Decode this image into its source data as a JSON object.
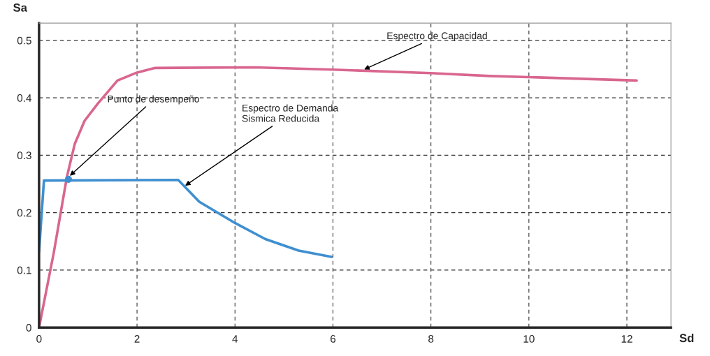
{
  "chart_data": {
    "type": "line",
    "xlabel": "Sd",
    "ylabel": "Sa",
    "xlim": [
      0,
      12.9
    ],
    "ylim": [
      0,
      0.53
    ],
    "xticks": [
      0,
      2,
      4,
      6,
      8,
      10,
      12
    ],
    "yticks": [
      0,
      0.1,
      0.2,
      0.3,
      0.4,
      0.5
    ],
    "grid": true,
    "line_style": "solid",
    "marker": "none",
    "series": [
      {
        "color": "#d9668f",
        "x": [
          0,
          0.3,
          0.57,
          0.73,
          0.93,
          1.2,
          1.6,
          2.0,
          2.37,
          4.4,
          6,
          8,
          9.2,
          10,
          12.2
        ],
        "values": [
          0,
          0.13,
          0.263,
          0.32,
          0.36,
          0.39,
          0.43,
          0.444,
          0.452,
          0.453,
          0.449,
          0.443,
          0.438,
          0.436,
          0.43
        ]
      },
      {
        "color": "#3f8fd0",
        "x": [
          0,
          0.1,
          2.84,
          3.27,
          4.0,
          4.62,
          5.3,
          5.97
        ],
        "values": [
          0.132,
          0.256,
          0.257,
          0.219,
          0.182,
          0.154,
          0.134,
          0.123
        ]
      },
      {
        "type": "scatter",
        "marker": "circle",
        "color": "#3f8fd0",
        "x": [
          0.6
        ],
        "values": [
          0.258
        ]
      }
    ],
    "annotations": [
      {
        "text": "Espectro de Capacidad",
        "x": 6.6,
        "y": 0.448
      },
      {
        "text": "Punto de desempeño",
        "x": 0.6,
        "y": 0.262
      },
      {
        "text": "Espectro de Demanda\nSismica Reducida",
        "x": 2.95,
        "y": 0.245
      }
    ]
  }
}
